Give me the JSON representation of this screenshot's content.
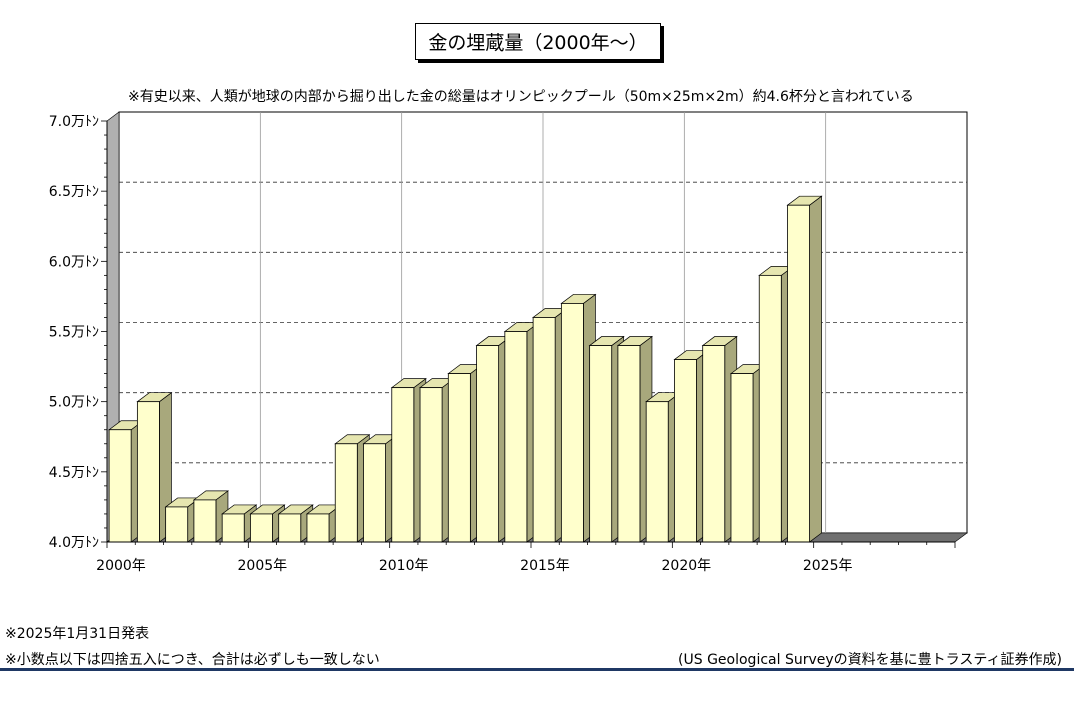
{
  "title": "金の埋蔵量（2000年～）",
  "subtitle": "※有史以来、人類が地球の内部から掘り出した金の総量はオリンピックプール（50m×25m×2m）約4.6杯分と言われている",
  "notes": {
    "date": "※2025年1月31日発表",
    "rounding": "※小数点以下は四捨五入につき、合計は必ずしも一致しない",
    "source": "(US Geological Surveyの資料を基に豊トラスティ証券作成)"
  },
  "colors": {
    "bar_face": "#ffffcc",
    "bar_side": "#a8a87c",
    "bar_top": "#e6e6b0",
    "wall": "#b0b0b0",
    "floor": "#707070",
    "rule": "#1f3864"
  },
  "chart_data": {
    "type": "bar",
    "style": "3d",
    "x": [
      2000,
      2001,
      2002,
      2003,
      2004,
      2005,
      2006,
      2007,
      2008,
      2009,
      2010,
      2011,
      2012,
      2013,
      2014,
      2015,
      2016,
      2017,
      2018,
      2019,
      2020,
      2021,
      2022,
      2023,
      2024
    ],
    "values": [
      4.8,
      5.0,
      4.25,
      4.3,
      4.2,
      4.2,
      4.2,
      4.2,
      4.7,
      4.7,
      5.1,
      5.1,
      5.2,
      5.4,
      5.5,
      5.6,
      5.7,
      5.4,
      5.4,
      5.0,
      5.3,
      5.4,
      5.2,
      5.9,
      6.4
    ],
    "ylim": [
      4.0,
      7.0
    ],
    "xlim": [
      2000,
      2030
    ],
    "y_ticks": [
      {
        "value": 4.0,
        "label": "4.0万ﾄﾝ"
      },
      {
        "value": 4.5,
        "label": "4.5万ﾄﾝ"
      },
      {
        "value": 5.0,
        "label": "5.0万ﾄﾝ"
      },
      {
        "value": 5.5,
        "label": "5.5万ﾄﾝ"
      },
      {
        "value": 6.0,
        "label": "6.0万ﾄﾝ"
      },
      {
        "value": 6.5,
        "label": "6.5万ﾄﾝ"
      },
      {
        "value": 7.0,
        "label": "7.0万ﾄﾝ"
      }
    ],
    "x_ticks": [
      {
        "value": 2000,
        "label": "2000年"
      },
      {
        "value": 2005,
        "label": "2005年"
      },
      {
        "value": 2010,
        "label": "2010年"
      },
      {
        "value": 2015,
        "label": "2015年"
      },
      {
        "value": 2020,
        "label": "2020年"
      },
      {
        "value": 2025,
        "label": "2025年"
      }
    ],
    "grid": {
      "horizontal": "dashed",
      "vertical": "solid"
    }
  }
}
